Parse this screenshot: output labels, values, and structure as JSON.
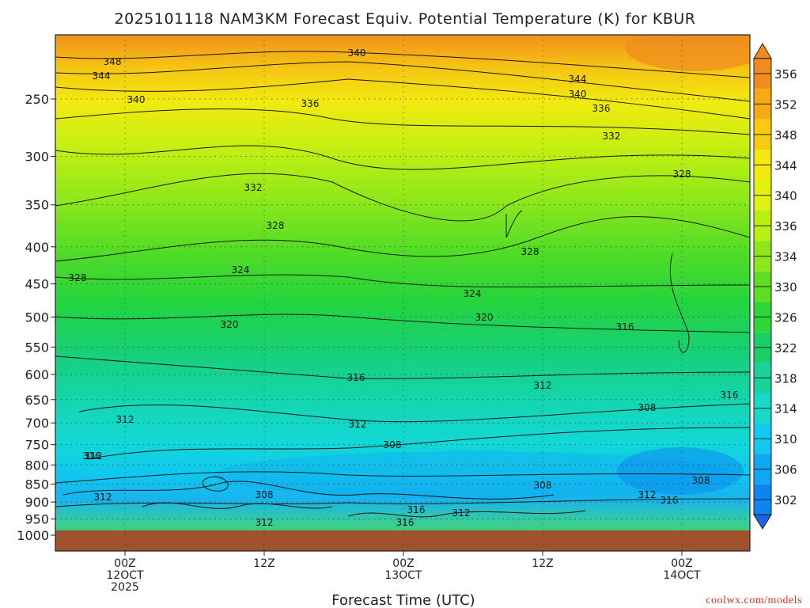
{
  "chart_data": {
    "type": "heatmap",
    "title": "2025101118 NAM3KM Forecast Equiv. Potential Temperature (K) for KBUR",
    "xlabel": "Forecast Time (UTC)",
    "ylabel": "",
    "y_ticks": [
      "250",
      "300",
      "350",
      "400",
      "450",
      "500",
      "550",
      "600",
      "650",
      "700",
      "750",
      "800",
      "850",
      "900",
      "950",
      "1000"
    ],
    "ylim": [
      1000,
      200
    ],
    "x_ticks": [
      {
        "lines": [
          "00Z",
          "12OCT",
          "2025"
        ]
      },
      {
        "lines": [
          "12Z"
        ]
      },
      {
        "lines": [
          "00Z",
          "13OCT"
        ]
      },
      {
        "lines": [
          "12Z"
        ]
      },
      {
        "lines": [
          "00Z",
          "14OCT"
        ]
      }
    ],
    "colorbar": {
      "unit": "K",
      "ticks": [
        "356",
        "352",
        "348",
        "344",
        "340",
        "336",
        "334",
        "330",
        "326",
        "322",
        "318",
        "314",
        "310",
        "306",
        "302"
      ],
      "colors": [
        "#f08c1e",
        "#f5aa14",
        "#f7c90f",
        "#f5e80d",
        "#e2f20f",
        "#b8ee12",
        "#8ce81a",
        "#5ede22",
        "#2ed638",
        "#18d066",
        "#18d39a",
        "#16d9c8",
        "#12c9ef",
        "#0fa7f2",
        "#0b86ee",
        "#1a66e6"
      ]
    },
    "grid": "dotted",
    "contour_labels": [
      "348",
      "344",
      "340",
      "340",
      "336",
      "344",
      "340",
      "336",
      "332",
      "332",
      "328",
      "328",
      "328",
      "328",
      "324",
      "324",
      "320",
      "320",
      "316",
      "316",
      "316",
      "312",
      "312",
      "312",
      "312",
      "308",
      "308",
      "308",
      "316",
      "308",
      "312",
      "312",
      "316",
      "312",
      "316",
      "312",
      "316",
      "308"
    ],
    "ground_color": "#a0522d",
    "accent_color": "#d33"
  },
  "credit": "coolwx.com/models"
}
